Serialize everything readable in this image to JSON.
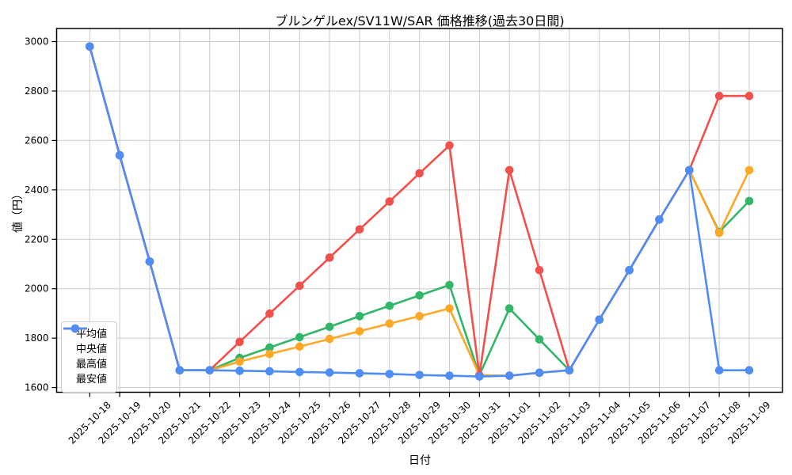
{
  "chart_data": {
    "type": "line",
    "title": "ブルンゲルex/SV11W/SAR 価格推移(過去30日間)",
    "xlabel": "日付",
    "ylabel": "値（円）",
    "grid": true,
    "legend_position": "center-left",
    "ylim": [
      1581,
      3053
    ],
    "yticks": [
      1600,
      1800,
      2000,
      2200,
      2400,
      2600,
      2800,
      3000
    ],
    "categories": [
      "2025-10-18",
      "2025-10-19",
      "2025-10-20",
      "2025-10-21",
      "2025-10-22",
      "2025-10-23",
      "2025-10-24",
      "2025-10-25",
      "2025-10-26",
      "2025-10-27",
      "2025-10-28",
      "2025-10-29",
      "2025-10-30",
      "2025-10-31",
      "2025-11-01",
      "2025-11-02",
      "2025-11-03",
      "2025-11-04",
      "2025-11-05",
      "2025-11-06",
      "2025-11-07",
      "2025-11-08",
      "2025-11-09"
    ],
    "series": [
      {
        "key": "avg",
        "name": "平均値",
        "color": "#31b767",
        "values": [
          2980,
          2540,
          2110,
          1670,
          1670,
          1720,
          1762,
          1804,
          1846,
          1889,
          1931,
          1973,
          2015,
          1650,
          1920,
          1795,
          1670,
          1875,
          2075,
          2280,
          2480,
          2230,
          2355
        ]
      },
      {
        "key": "median",
        "name": "中央値",
        "color": "#ffa726",
        "values": [
          2980,
          2540,
          2110,
          1670,
          1670,
          1705,
          1736,
          1766,
          1797,
          1828,
          1859,
          1889,
          1920,
          1650,
          1648,
          1660,
          1670,
          1875,
          2075,
          2280,
          2480,
          2226,
          2480
        ]
      },
      {
        "key": "max",
        "name": "最高値",
        "color": "#f2504b",
        "values": [
          2980,
          2540,
          2110,
          1670,
          1670,
          1785,
          1899,
          2012,
          2126,
          2240,
          2353,
          2467,
          2580,
          1650,
          2480,
          2075,
          1670,
          1875,
          2075,
          2280,
          2480,
          2780,
          2780
        ]
      },
      {
        "key": "min",
        "name": "最安値",
        "color": "#4f8df6",
        "values": [
          2980,
          2540,
          2110,
          1670,
          1670,
          1668,
          1666,
          1663,
          1661,
          1658,
          1655,
          1651,
          1648,
          1645,
          1648,
          1660,
          1670,
          1875,
          2075,
          2280,
          2480,
          1670,
          1670
        ]
      }
    ]
  }
}
